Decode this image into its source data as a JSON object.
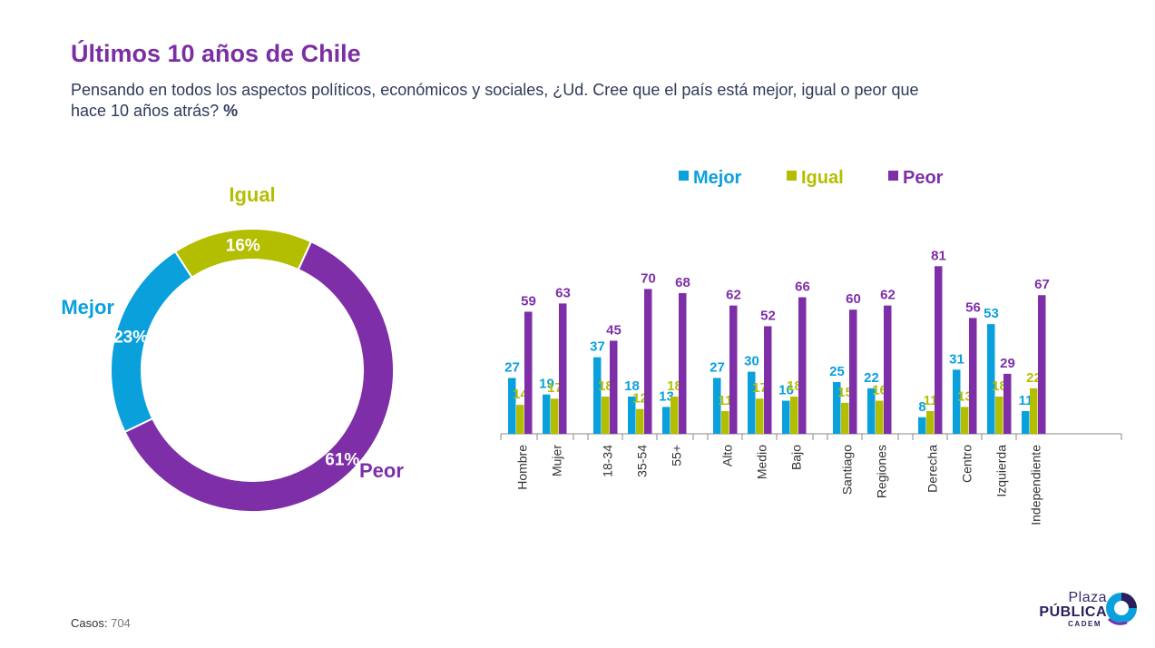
{
  "header": {
    "title": "Últimos 10 años de Chile",
    "subtitle": "Pensando en todos los aspectos políticos, económicos y sociales, ¿Ud. Cree que el país está mejor, igual o peor que hace 10 años atrás?",
    "subtitle_unit": "%"
  },
  "colors": {
    "mejor": "#0aa0dc",
    "igual": "#b4be00",
    "peor": "#7e2fa8"
  },
  "chart_data": [
    {
      "type": "pie",
      "variant": "donut",
      "labels": [
        "Igual",
        "Peor",
        "Mejor"
      ],
      "values": [
        16,
        61,
        23
      ],
      "value_labels": [
        "16%",
        "61%",
        "23%"
      ]
    },
    {
      "type": "bar",
      "legend_position": "top",
      "categories": [
        "Hombre",
        "Mujer",
        "18-34",
        "35-54",
        "55+",
        "Alto",
        "Medio",
        "Bajo",
        "Santiago",
        "Regiones",
        "Derecha",
        "Centro",
        "Izquierda",
        "Independiente"
      ],
      "groups": [
        [
          "Hombre",
          "Mujer"
        ],
        [
          "18-34",
          "35-54",
          "55+"
        ],
        [
          "Alto",
          "Medio",
          "Bajo"
        ],
        [
          "Santiago",
          "Regiones"
        ],
        [
          "Derecha",
          "Centro",
          "Izquierda",
          "Independiente"
        ]
      ],
      "series": [
        {
          "name": "Mejor",
          "values": [
            27,
            19,
            37,
            18,
            13,
            27,
            30,
            16,
            25,
            22,
            8,
            31,
            53,
            11
          ]
        },
        {
          "name": "Igual",
          "values": [
            14,
            17,
            18,
            12,
            18,
            11,
            17,
            18,
            15,
            16,
            11,
            13,
            18,
            22
          ]
        },
        {
          "name": "Peor",
          "values": [
            59,
            63,
            45,
            70,
            68,
            62,
            52,
            66,
            60,
            62,
            81,
            56,
            29,
            67
          ]
        }
      ]
    }
  ],
  "footer": {
    "label": "Casos",
    "value": "704"
  },
  "logo": {
    "line1": "Plaza",
    "line2": "PÚBLICA",
    "line3": "CADEM"
  }
}
